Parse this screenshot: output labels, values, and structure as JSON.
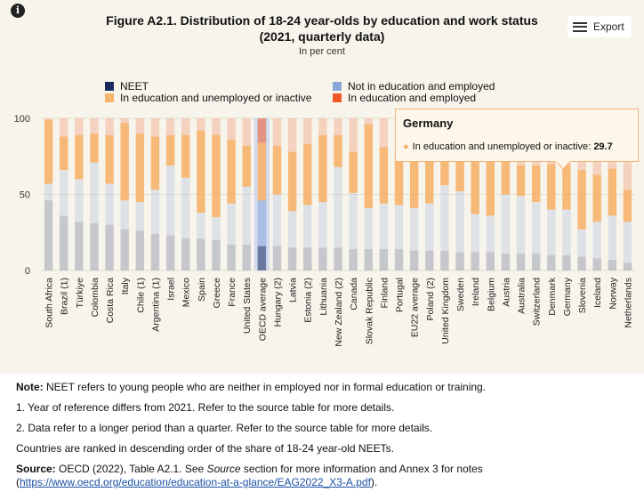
{
  "title_line1": "Figure A2.1. Distribution of 18-24 year-olds by education and work status",
  "title_line2": "(2021, quarterly data)",
  "subtitle": "In per cent",
  "export_label": "Export",
  "colors": {
    "neet": "#1a2a5e",
    "not_in_education_employed": "#8aa6d8",
    "in_education_unemployed": "#f6b36b",
    "in_education_employed": "#f05a28"
  },
  "legend": [
    {
      "label": "NEET",
      "color": "#1a2a5e"
    },
    {
      "label": "Not in education and employed",
      "color": "#8aa6d8"
    },
    {
      "label": "In education and unemployed or inactive",
      "color": "#f6b36b"
    },
    {
      "label": "In education and employed",
      "color": "#f05a28"
    }
  ],
  "tooltip": {
    "title": "Germany",
    "series": "In education and unemployed or inactive",
    "value": "29.7"
  },
  "chart_data": {
    "type": "bar",
    "stacked": true,
    "ylim": [
      0,
      100
    ],
    "yticks": [
      "0",
      "50",
      "100"
    ],
    "highlighted_category": "OECD average",
    "categories": [
      "South Africa",
      "Brazil (1)",
      "Türkiye",
      "Colombia",
      "Costa Rica",
      "Italy",
      "Chile (1)",
      "Argentina (1)",
      "Israel",
      "Mexico",
      "Spain",
      "Greece",
      "France",
      "United States",
      "OECD average",
      "Hungary (2)",
      "Latvia",
      "Estonia (2)",
      "Lithuania",
      "New Zealand (2)",
      "Canada",
      "Slovak Republic",
      "Finland",
      "Portugal",
      "EU22 average",
      "Poland (2)",
      "United Kingdom",
      "Sweden",
      "Ireland",
      "Belgium",
      "Austria",
      "Australia",
      "Switzerland",
      "Denmark",
      "Germany",
      "Slovenia",
      "Iceland",
      "Norway",
      "Netherlands"
    ],
    "series": [
      {
        "name": "NEET",
        "values": [
          46,
          36,
          32,
          31,
          30,
          27,
          26,
          24,
          23,
          21,
          21,
          20,
          17,
          17,
          16,
          16,
          15,
          15,
          15,
          15,
          14,
          14,
          14,
          14,
          13,
          13,
          13,
          12,
          12,
          12,
          11,
          11,
          11,
          10,
          10,
          9,
          8,
          7,
          5
        ]
      },
      {
        "name": "Not in education and employed",
        "values": [
          11,
          30,
          28,
          40,
          27,
          19,
          19,
          29,
          46,
          40,
          17,
          15,
          27,
          38,
          30,
          34,
          24,
          28,
          30,
          53,
          37,
          27,
          30,
          29,
          28,
          31,
          43,
          40,
          25,
          24,
          39,
          38,
          34,
          30,
          30,
          18,
          24,
          29,
          27
        ]
      },
      {
        "name": "In education and unemployed or inactive",
        "values": [
          42,
          22,
          29,
          19,
          32,
          51,
          45,
          35,
          20,
          28,
          54,
          54,
          42,
          27,
          38,
          32,
          39,
          40,
          44,
          21,
          27,
          55,
          37,
          34,
          42,
          35,
          30,
          36,
          41,
          44,
          26,
          20,
          24,
          30,
          29.7,
          39,
          31,
          31,
          21
        ]
      },
      {
        "name": "In education and employed",
        "values": [
          1,
          12,
          11,
          10,
          11,
          3,
          10,
          12,
          11,
          11,
          8,
          11,
          14,
          18,
          16,
          18,
          22,
          17,
          11,
          11,
          22,
          4,
          19,
          23,
          17,
          21,
          14,
          12,
          22,
          20,
          24,
          31,
          31,
          30,
          30.3,
          34,
          37,
          33,
          47
        ]
      }
    ]
  },
  "notes": {
    "note_label": "Note:",
    "note_text": " NEET refers to young people who are neither in employed nor in formal education or training.",
    "note1": "1. Year of reference differs from 2021. Refer to the source table for more details.",
    "note2": "2. Data refer to a longer period than a quarter. Refer to the source table for more details.",
    "ranking": "Countries are ranked in descending order of the share of 18-24 year-old NEETs.",
    "source_label": "Source:",
    "source_text_a": " OECD (2022), Table A2.1. See ",
    "source_italic": "Source",
    "source_text_b": " section for more information and Annex 3 for notes",
    "source_paren_open": "(",
    "source_link": "https://www.oecd.org/education/education-at-a-glance/EAG2022_X3-A.pdf",
    "source_paren_close": ")."
  }
}
